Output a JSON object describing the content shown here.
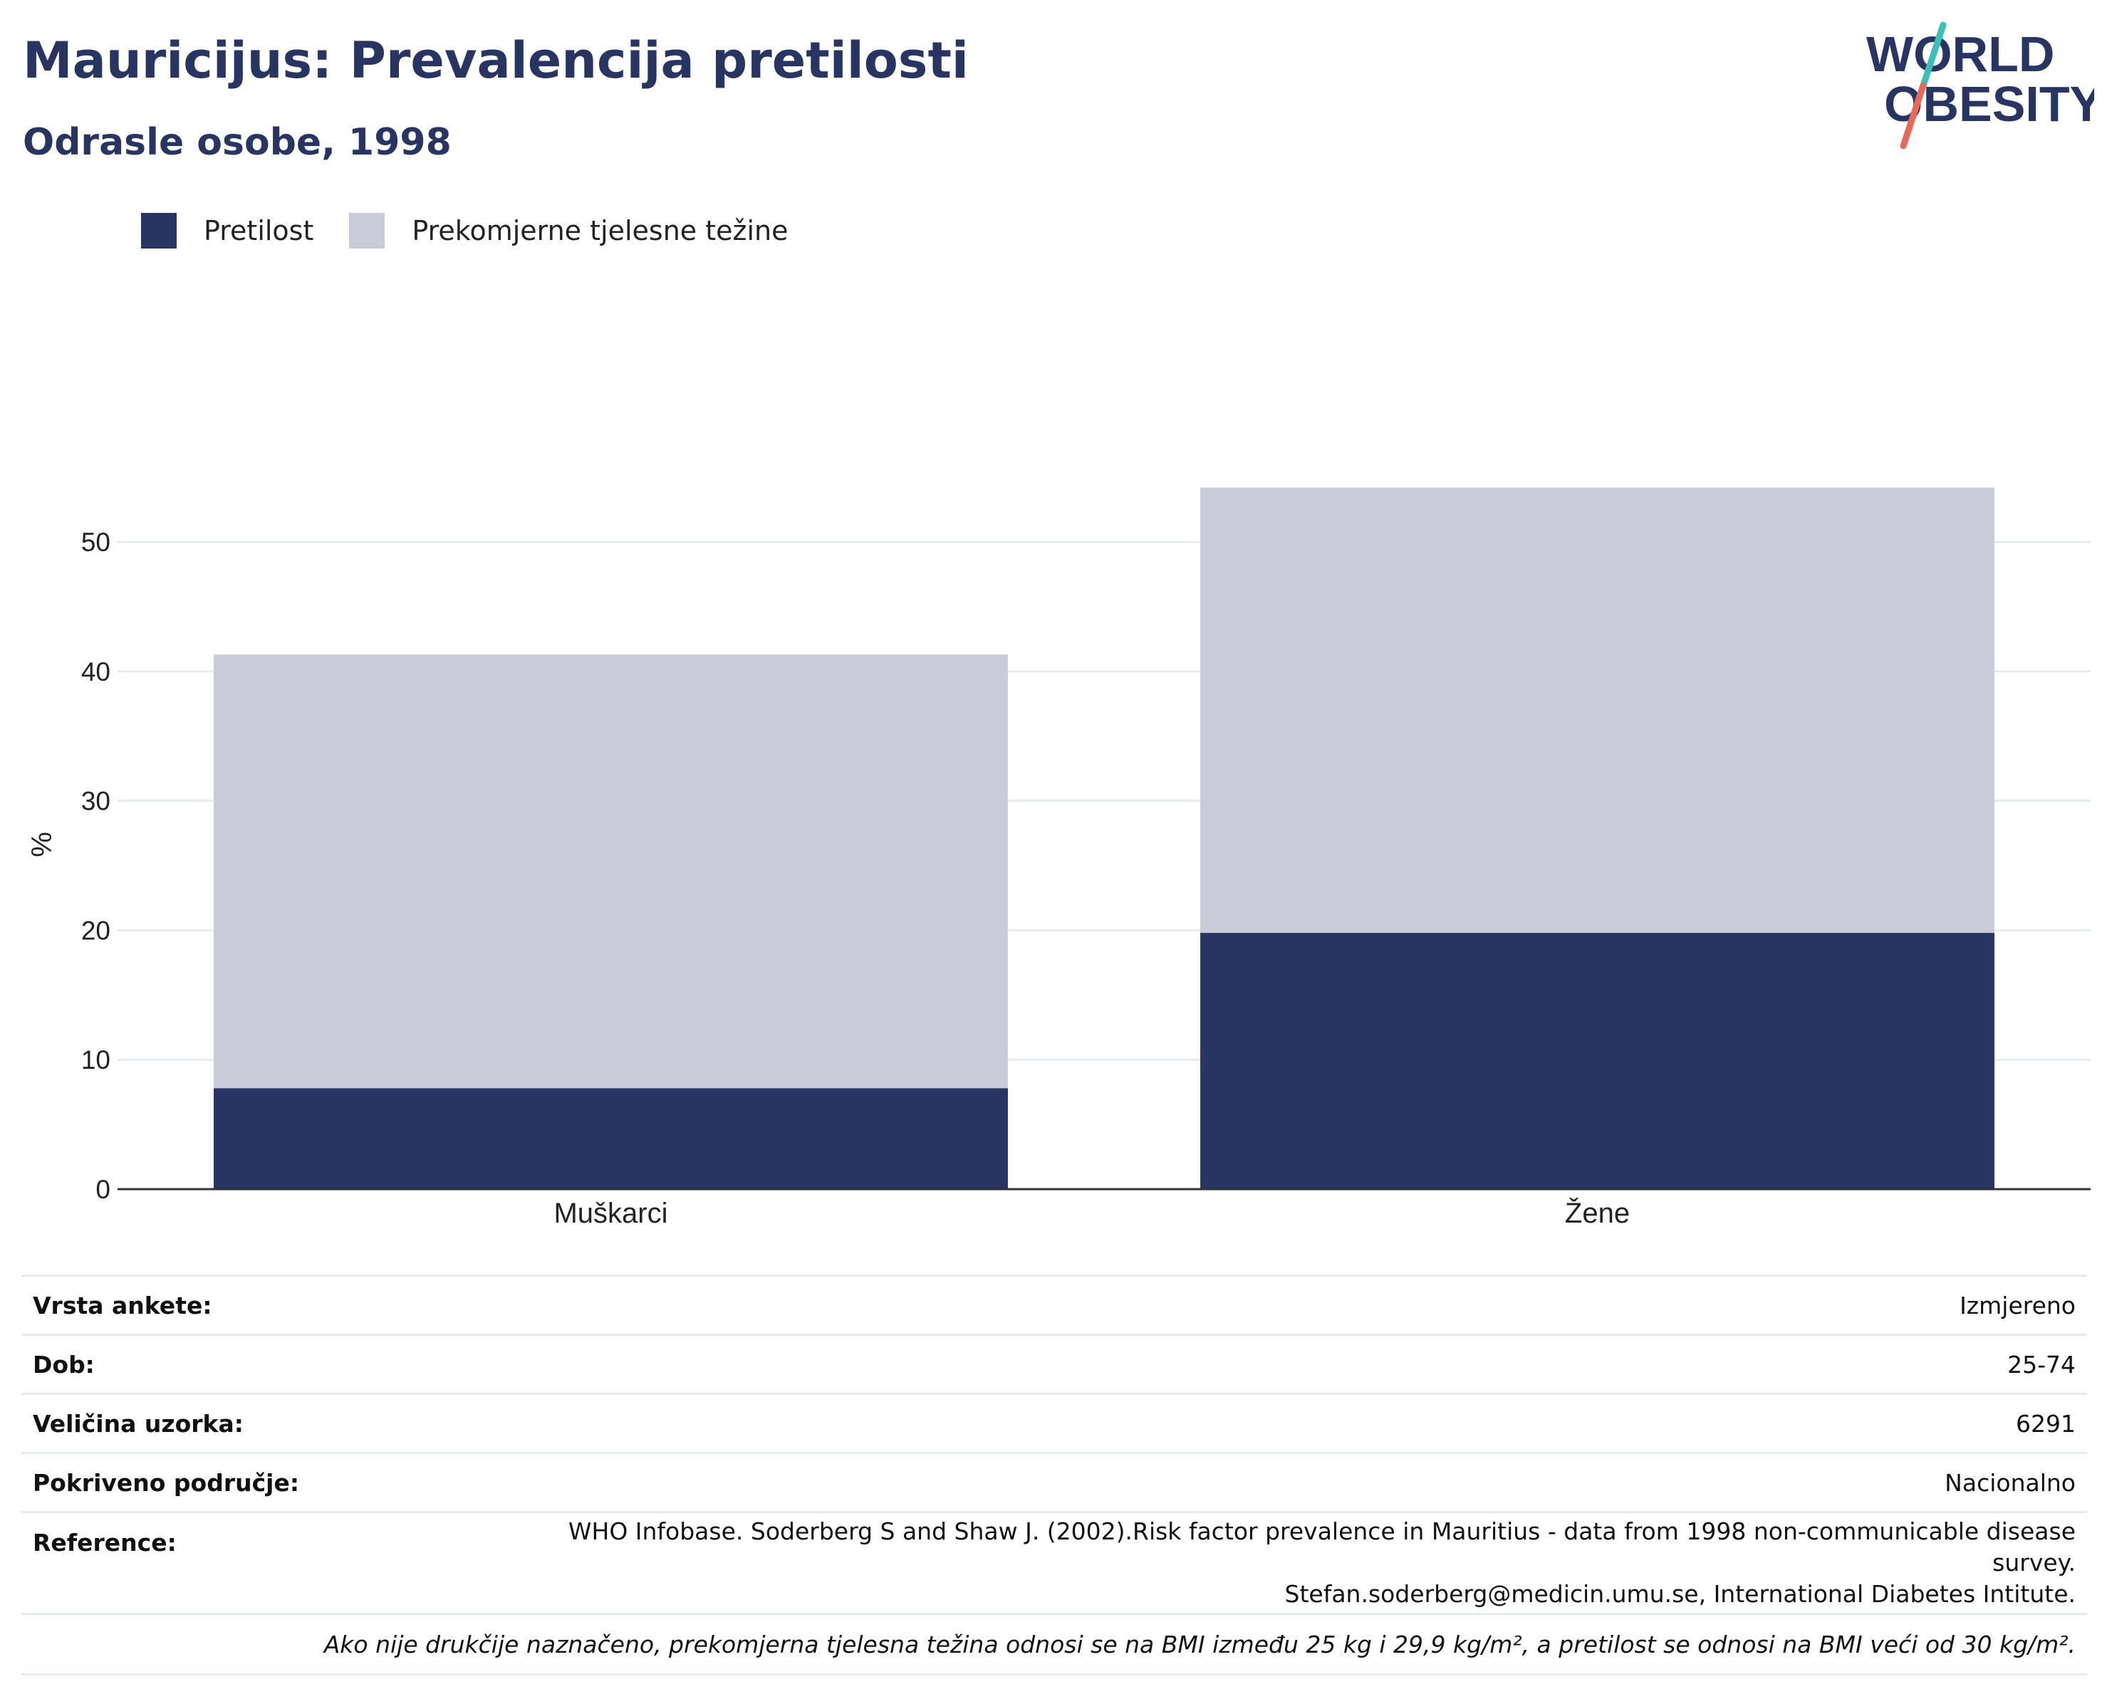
{
  "title": "Mauricijus: Prevalencija pretilosti",
  "subtitle": "Odrasle osobe, 1998",
  "logo": {
    "line1": "WORLD",
    "line2": "OBESITY"
  },
  "chart_data": {
    "type": "bar",
    "stacked": true,
    "categories": [
      "Muškarci",
      "Žene"
    ],
    "series": [
      {
        "name": "Pretilost",
        "color": "#283562",
        "values": [
          7.8,
          19.8
        ]
      },
      {
        "name": "Prekomjerne tjelesne težine",
        "color": "#c9ccd8",
        "values": [
          33.5,
          34.4
        ]
      }
    ],
    "ylabel": "%",
    "ylim": [
      0,
      56
    ],
    "yticks": [
      0,
      10,
      20,
      30,
      40,
      50
    ],
    "grid": true,
    "legend_position": "top-left"
  },
  "info": {
    "rows": [
      {
        "label": "Vrsta ankete:",
        "value": "Izmjereno"
      },
      {
        "label": "Dob:",
        "value": "25-74"
      },
      {
        "label": "Veličina uzorka:",
        "value": "6291"
      },
      {
        "label": "Pokriveno područje:",
        "value": "Nacionalno"
      }
    ],
    "reference_label": "Reference:",
    "reference_line1": "WHO Infobase. Soderberg S and Shaw J. (2002).Risk factor prevalence in Mauritius - data from 1998 non-communicable disease survey.",
    "reference_line2": "Stefan.soderberg@medicin.umu.se, International Diabetes Intitute.",
    "note": "Ako nije drukčije naznačeno, prekomjerna tjelesna težina odnosi se na BMI između 25 kg i 29,9 kg/m², a pretilost se odnosi na BMI veći od 30 kg/m²."
  }
}
